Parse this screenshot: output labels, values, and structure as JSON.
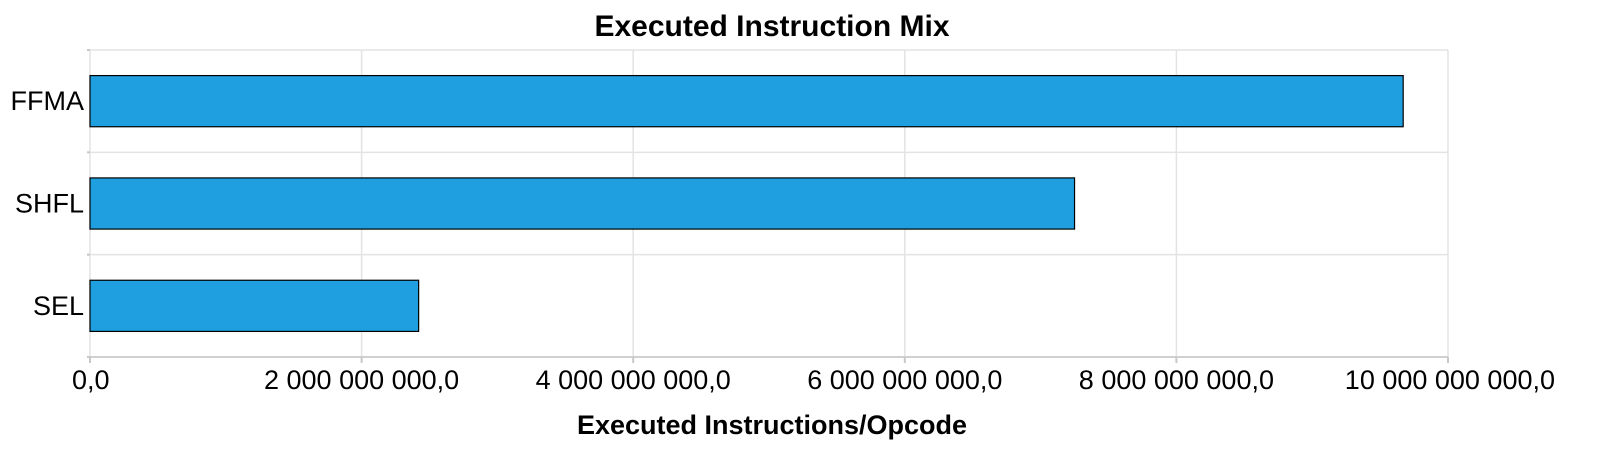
{
  "chart_data": {
    "type": "bar",
    "orientation": "horizontal",
    "title": "Executed Instruction Mix",
    "xlabel": "Executed Instructions/Opcode",
    "ylabel": "",
    "categories": [
      "FFMA",
      "SHFL",
      "SEL"
    ],
    "values": [
      9670000000,
      7250000000,
      2420000000
    ],
    "xlim": [
      0,
      10000000000
    ],
    "x_ticks": [
      0,
      2000000000,
      4000000000,
      6000000000,
      8000000000,
      10000000000
    ],
    "x_tick_labels": [
      "0,0",
      "2 000 000 000,0",
      "4 000 000 000,0",
      "6 000 000 000,0",
      "8 000 000 000,0",
      "10 000 000 000,0"
    ],
    "grid": true,
    "legend": "none",
    "bar_color": "#1f9fdf",
    "bar_edge_color": "#000000"
  }
}
